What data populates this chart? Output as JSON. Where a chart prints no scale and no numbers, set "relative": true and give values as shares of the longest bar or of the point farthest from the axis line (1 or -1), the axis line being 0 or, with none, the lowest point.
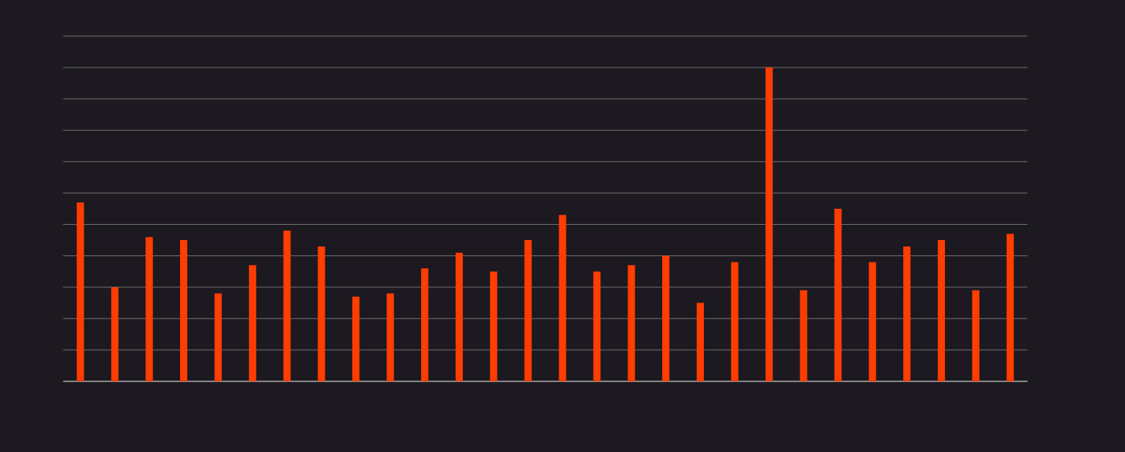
{
  "chart_data": {
    "type": "bar",
    "relative": true,
    "grid": "y",
    "color": "#ff3d00",
    "categories": [
      null,
      null,
      null,
      null,
      null,
      null,
      null,
      null,
      null,
      null,
      null,
      null,
      null,
      null,
      null,
      null,
      null,
      null,
      null,
      null,
      null,
      null,
      null,
      null,
      null,
      null,
      null,
      null
    ],
    "values": [
      0.57,
      0.3,
      0.46,
      0.45,
      0.28,
      0.37,
      0.48,
      0.43,
      0.27,
      0.28,
      0.36,
      0.41,
      0.35,
      0.45,
      0.53,
      0.35,
      0.37,
      0.4,
      0.25,
      0.38,
      1,
      0.29,
      0.55,
      0.38,
      0.43,
      0.45,
      0.29,
      0.47
    ]
  }
}
